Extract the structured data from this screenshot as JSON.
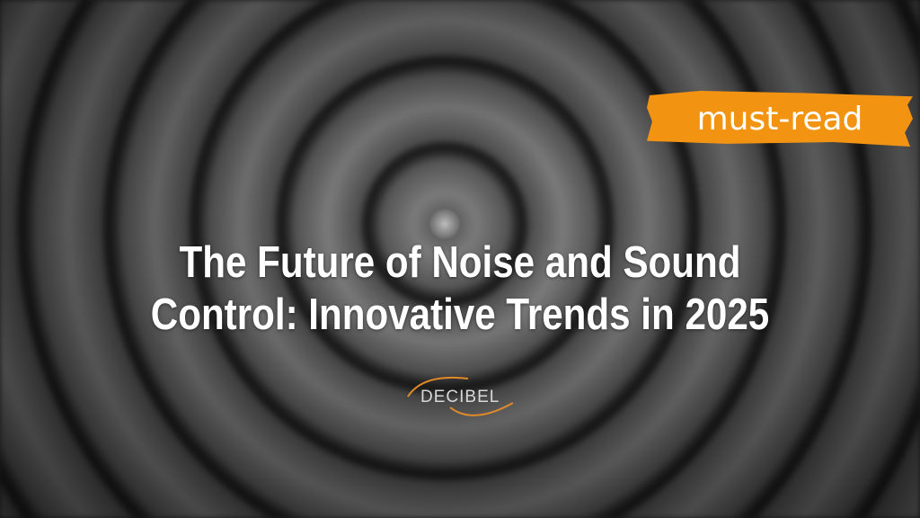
{
  "badge": {
    "label": "must-read",
    "color": "#f39312"
  },
  "title": {
    "line1": "The Future of Noise and Sound",
    "line2": "Control: Innovative Trends in 2025"
  },
  "logo": {
    "text": "DECIBEL",
    "accent": "#e08a2a"
  }
}
